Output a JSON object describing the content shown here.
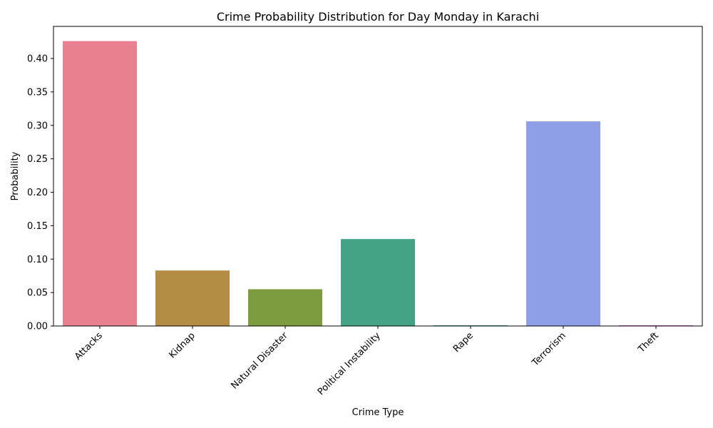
{
  "chart_data": {
    "type": "bar",
    "title": "Crime Probability Distribution for Day Monday in Karachi",
    "xlabel": "Crime Type",
    "ylabel": "Probability",
    "categories": [
      "Attacks",
      "Kidnap",
      "Natural Disaster",
      "Political Instability",
      "Rape",
      "Terrorism",
      "Theft"
    ],
    "values": [
      0.426,
      0.083,
      0.055,
      0.13,
      0.001,
      0.306,
      0.001
    ],
    "colors": [
      "#e88092",
      "#b38d43",
      "#7d9c3f",
      "#43a186",
      "#3f9d9a",
      "#8f9fe6",
      "#d462c8"
    ],
    "ylim": [
      0,
      0.448
    ],
    "yticks": [
      0.0,
      0.05,
      0.1,
      0.15,
      0.2,
      0.25,
      0.3,
      0.35,
      0.4
    ],
    "ytick_labels": [
      "0.00",
      "0.05",
      "0.10",
      "0.15",
      "0.20",
      "0.25",
      "0.30",
      "0.35",
      "0.40"
    ],
    "grid": false,
    "legend": "none"
  }
}
